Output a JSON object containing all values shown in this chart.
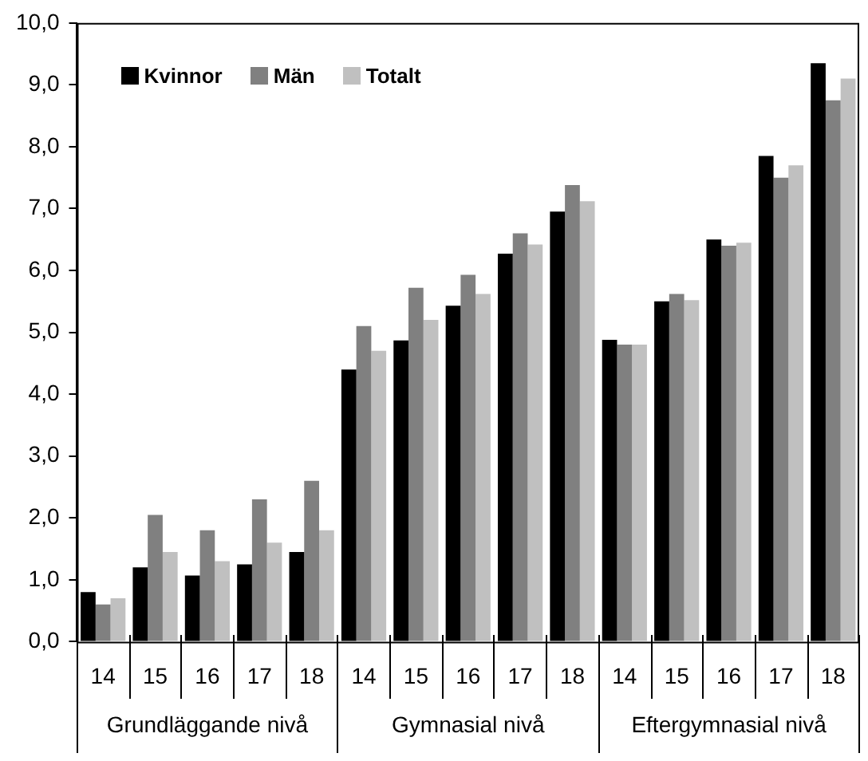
{
  "chart_data": {
    "type": "bar",
    "categories": [
      "14",
      "15",
      "16",
      "17",
      "18",
      "14",
      "15",
      "16",
      "17",
      "18",
      "14",
      "15",
      "16",
      "17",
      "18"
    ],
    "series": [
      {
        "name": "Kvinnor",
        "color": "#000000",
        "values": [
          0.8,
          1.2,
          1.07,
          1.25,
          1.45,
          4.4,
          4.87,
          5.43,
          6.27,
          6.95,
          4.88,
          5.5,
          6.5,
          7.85,
          9.35
        ]
      },
      {
        "name": "Män",
        "color": "#808080",
        "values": [
          0.6,
          2.05,
          1.8,
          2.3,
          2.6,
          5.1,
          5.72,
          5.93,
          6.6,
          7.38,
          4.8,
          5.62,
          6.4,
          7.5,
          8.75
        ]
      },
      {
        "name": "Totalt",
        "color": "#c0c0c0",
        "values": [
          0.7,
          1.45,
          1.3,
          1.6,
          1.8,
          4.7,
          5.2,
          5.62,
          6.42,
          7.12,
          4.8,
          5.52,
          6.45,
          7.7,
          9.1
        ]
      }
    ],
    "ylim": [
      0,
      10
    ],
    "yticks": [
      {
        "value": 0,
        "label": "0,0"
      },
      {
        "value": 1,
        "label": "1,0"
      },
      {
        "value": 2,
        "label": "2,0"
      },
      {
        "value": 3,
        "label": "3,0"
      },
      {
        "value": 4,
        "label": "4,0"
      },
      {
        "value": 5,
        "label": "5,0"
      },
      {
        "value": 6,
        "label": "6,0"
      },
      {
        "value": 7,
        "label": "7,0"
      },
      {
        "value": 8,
        "label": "8,0"
      },
      {
        "value": 9,
        "label": "9,0"
      },
      {
        "value": 10,
        "label": "10,0"
      }
    ],
    "annotations": [
      "Grundläggande nivå",
      "Gymnasial nivå",
      "Eftergymnasial nivå"
    ],
    "grid": false,
    "legend": "top left"
  }
}
